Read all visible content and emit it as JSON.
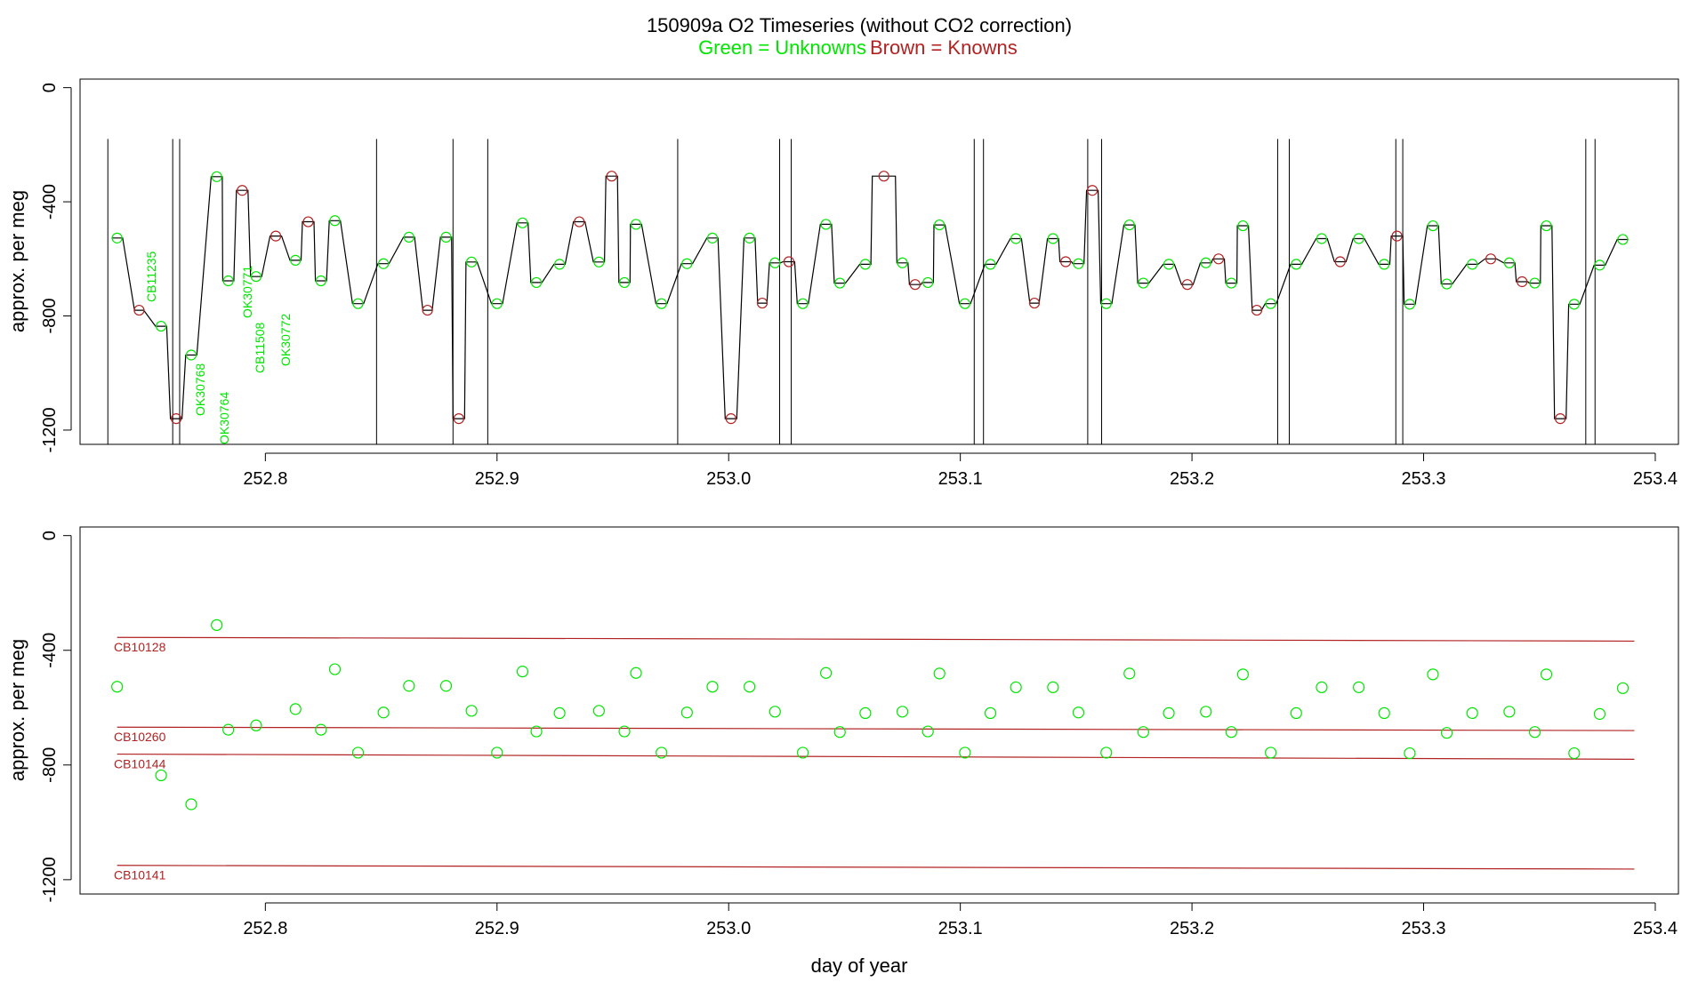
{
  "title": "150909a   O2 Timeseries (without CO2 correction)",
  "legend": {
    "unknowns": "Green = Unknowns",
    "knowns": "Brown = Knowns",
    "unknowns_color": "#00e600",
    "knowns_color": "#b22222"
  },
  "colors": {
    "trace": "#000000",
    "axis": "#000000",
    "reference_line": "#b22222"
  },
  "chart_data": [
    {
      "type": "line",
      "panel": "top",
      "xlabel": "",
      "ylabel": "approx. per meg",
      "xlim": [
        252.72,
        253.41
      ],
      "ylim": [
        -1250,
        30
      ],
      "x_ticks": [
        "252.8",
        "252.9",
        "253.0",
        "253.1",
        "253.2",
        "253.3",
        "253.4"
      ],
      "y_ticks": [
        "0",
        "-400",
        "-800",
        "-1200"
      ],
      "annotations": [
        "CB11235",
        "OK30768",
        "OK30764",
        "OK30771",
        "CB11508",
        "OK30772"
      ],
      "cycle_standard_plateaus": [
        {
          "level": -780,
          "days": 0.004
        },
        {
          "level": -1160,
          "days": 0.005
        },
        {
          "level": -755,
          "days": 0.004
        },
        {
          "level": -610,
          "days": 0.005
        },
        {
          "level": -360,
          "days": 0.005
        },
        {
          "level": -520,
          "days": 0.005
        },
        {
          "level": -470,
          "days": 0.005
        },
        {
          "level": -310,
          "days": 0.01
        },
        {
          "level": -690,
          "days": 0.005
        },
        {
          "level": -600,
          "days": 0.005
        },
        {
          "level": -680,
          "days": 0.005
        }
      ],
      "unknown_points": [
        {
          "x": 252.736,
          "y": -527
        },
        {
          "x": 252.755,
          "y": -836
        },
        {
          "x": 252.768,
          "y": -937
        },
        {
          "x": 252.779,
          "y": -312
        },
        {
          "x": 252.784,
          "y": -677
        },
        {
          "x": 252.796,
          "y": -662
        },
        {
          "x": 252.813,
          "y": -605
        },
        {
          "x": 252.824,
          "y": -677
        },
        {
          "x": 252.83,
          "y": -466
        },
        {
          "x": 252.84,
          "y": -757
        },
        {
          "x": 252.851,
          "y": -617
        },
        {
          "x": 252.862,
          "y": -524
        },
        {
          "x": 252.878,
          "y": -524
        },
        {
          "x": 252.889,
          "y": -611
        },
        {
          "x": 252.9,
          "y": -757
        },
        {
          "x": 252.911,
          "y": -474
        },
        {
          "x": 252.917,
          "y": -683
        },
        {
          "x": 252.927,
          "y": -619
        },
        {
          "x": 252.944,
          "y": -611
        },
        {
          "x": 252.955,
          "y": -683
        },
        {
          "x": 252.96,
          "y": -479
        },
        {
          "x": 252.971,
          "y": -757
        },
        {
          "x": 252.982,
          "y": -617
        },
        {
          "x": 252.993,
          "y": -527
        },
        {
          "x": 253.009,
          "y": -527
        },
        {
          "x": 253.02,
          "y": -614
        },
        {
          "x": 253.032,
          "y": -757
        },
        {
          "x": 253.042,
          "y": -479
        },
        {
          "x": 253.048,
          "y": -685
        },
        {
          "x": 253.059,
          "y": -619
        },
        {
          "x": 253.075,
          "y": -614
        },
        {
          "x": 253.086,
          "y": -683
        },
        {
          "x": 253.091,
          "y": -481
        },
        {
          "x": 253.102,
          "y": -757
        },
        {
          "x": 253.113,
          "y": -619
        },
        {
          "x": 253.124,
          "y": -529
        },
        {
          "x": 253.14,
          "y": -529
        },
        {
          "x": 253.151,
          "y": -617
        },
        {
          "x": 253.163,
          "y": -757
        },
        {
          "x": 253.173,
          "y": -481
        },
        {
          "x": 253.179,
          "y": -685
        },
        {
          "x": 253.19,
          "y": -619
        },
        {
          "x": 253.206,
          "y": -614
        },
        {
          "x": 253.217,
          "y": -685
        },
        {
          "x": 253.222,
          "y": -484
        },
        {
          "x": 253.234,
          "y": -757
        },
        {
          "x": 253.245,
          "y": -619
        },
        {
          "x": 253.256,
          "y": -529
        },
        {
          "x": 253.272,
          "y": -529
        },
        {
          "x": 253.283,
          "y": -619
        },
        {
          "x": 253.294,
          "y": -759
        },
        {
          "x": 253.304,
          "y": -484
        },
        {
          "x": 253.31,
          "y": -688
        },
        {
          "x": 253.321,
          "y": -619
        },
        {
          "x": 253.337,
          "y": -614
        },
        {
          "x": 253.348,
          "y": -685
        },
        {
          "x": 253.353,
          "y": -484
        },
        {
          "x": 253.365,
          "y": -759
        },
        {
          "x": 253.376,
          "y": -622
        },
        {
          "x": 253.386,
          "y": -532
        }
      ]
    },
    {
      "type": "scatter",
      "panel": "bottom",
      "xlabel": "day of year",
      "ylabel": "approx. per meg",
      "xlim": [
        252.72,
        253.41
      ],
      "ylim": [
        -1250,
        30
      ],
      "x_ticks": [
        "252.8",
        "252.9",
        "253.0",
        "253.1",
        "253.2",
        "253.3",
        "253.4"
      ],
      "y_ticks": [
        "0",
        "-400",
        "-800",
        "-1200"
      ],
      "reference_lines": [
        {
          "name": "CB10128",
          "x": [
            252.736,
            253.391
          ],
          "y": [
            -355,
            -368
          ]
        },
        {
          "name": "CB10260",
          "x": [
            252.736,
            253.391
          ],
          "y": [
            -668,
            -680
          ]
        },
        {
          "name": "CB10144",
          "x": [
            252.736,
            253.391
          ],
          "y": [
            -762,
            -780
          ]
        },
        {
          "name": "CB10141",
          "x": [
            252.736,
            253.391
          ],
          "y": [
            -1150,
            -1163
          ]
        }
      ]
    }
  ]
}
